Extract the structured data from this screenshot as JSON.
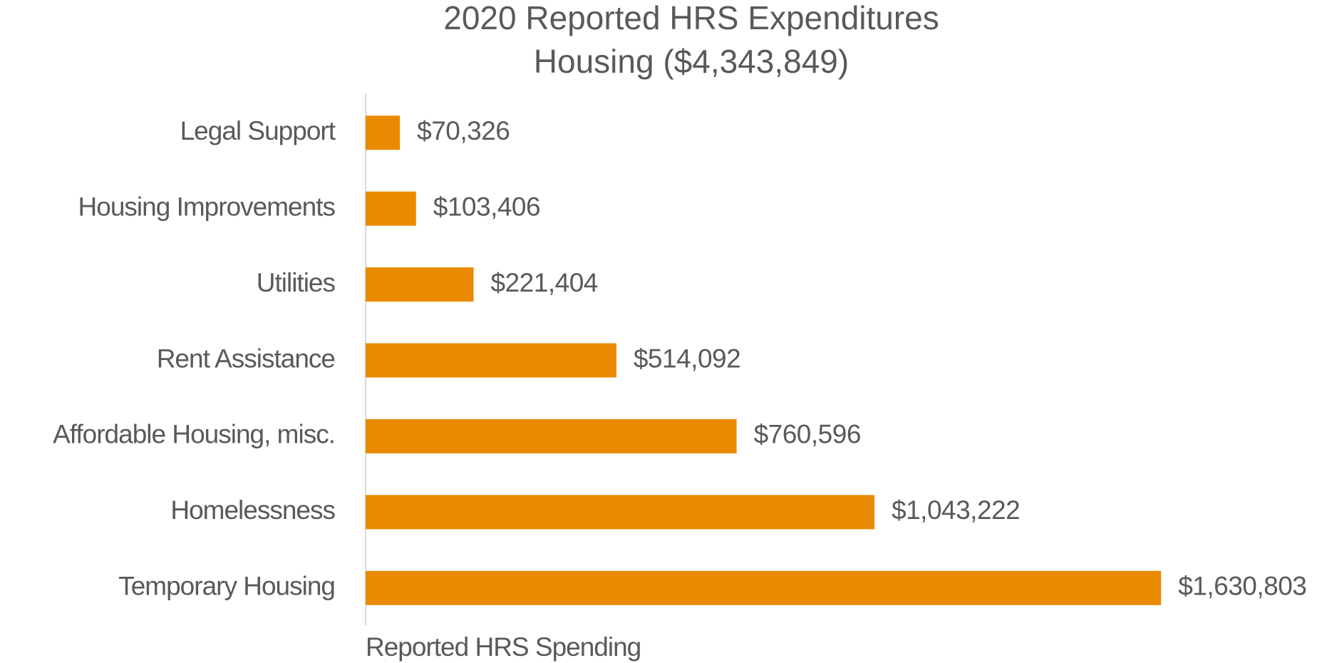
{
  "chart_data": {
    "type": "hbar",
    "title": [
      "2020 Reported HRS Expenditures",
      "Housing ($4,343,849)"
    ],
    "x_label": "Reported HRS Spending",
    "categories": [
      "Legal Support",
      "Housing Improvements",
      "Utilities",
      "Rent Assistance",
      "Affordable Housing, misc.",
      "Homelessness",
      "Temporary Housing"
    ],
    "values": [
      70326,
      103406,
      221404,
      514092,
      760596,
      1043222,
      1630803
    ],
    "value_labels": [
      "$70,326",
      "$103,406",
      "$221,404",
      "$514,092",
      "$760,596",
      "$1,043,222",
      "$1,630,803"
    ],
    "color": "#EA8A00",
    "xlim": [
      0,
      1800000
    ],
    "grid": false
  }
}
